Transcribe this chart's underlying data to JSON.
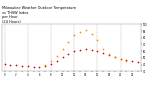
{
  "title": "Milwaukee Weather Outdoor Temperature\nvs THSW Index\nper Hour\n(24 Hours)",
  "title_fontsize": 2.5,
  "background_color": "#ffffff",
  "grid_color": "#aaaaaa",
  "hours": [
    0,
    1,
    2,
    3,
    4,
    5,
    6,
    7,
    8,
    9,
    10,
    11,
    12,
    13,
    14,
    15,
    16,
    17,
    18,
    19,
    20,
    21,
    22,
    23
  ],
  "temp_values": [
    41,
    40,
    39,
    38,
    38,
    37,
    37,
    38,
    41,
    46,
    51,
    56,
    60,
    62,
    63,
    62,
    60,
    57,
    54,
    51,
    49,
    47,
    46,
    44
  ],
  "thsw_values": [
    null,
    null,
    null,
    null,
    null,
    null,
    null,
    39,
    45,
    53,
    63,
    74,
    84,
    88,
    91,
    86,
    76,
    64,
    56,
    51,
    48,
    46,
    null,
    null
  ],
  "temp_color": "#cc0000",
  "thsw_color": "#ff8800",
  "ylim": [
    30,
    100
  ],
  "yticks": [
    30,
    40,
    50,
    60,
    70,
    80,
    90,
    100
  ],
  "ytick_labels": [
    "30",
    "40",
    "50",
    "60",
    "70",
    "80",
    "90",
    "100"
  ],
  "dot_size": 1.5,
  "vgrid_hours": [
    0,
    4,
    8,
    12,
    16,
    20
  ]
}
